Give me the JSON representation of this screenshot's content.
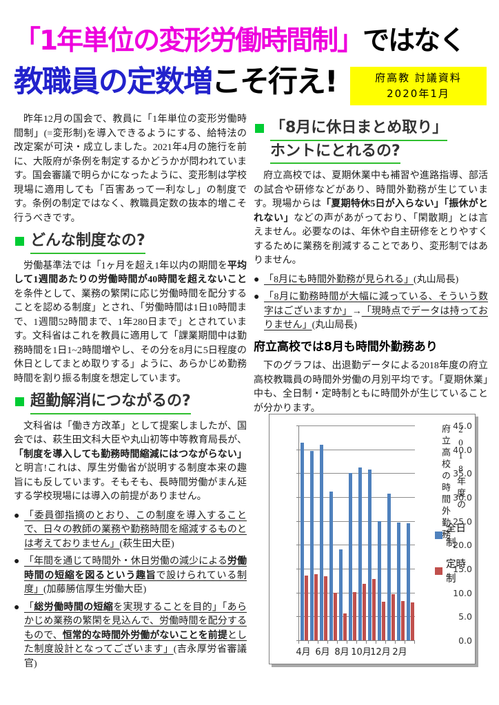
{
  "header": {
    "title_line1": [
      {
        "t": "「1年単位の変形労働時間制」",
        "c": "magenta"
      },
      {
        "t": "ではなく",
        "c": "black"
      }
    ],
    "title_line2": [
      {
        "t": "教職員の定数増",
        "c": "blue"
      },
      {
        "t": "こそ行え!",
        "c": "black"
      }
    ],
    "badge": {
      "line1": "府高教 討議資料",
      "line2": "2020年1月"
    }
  },
  "bullet_marker": "●",
  "colors": {
    "title_magenta": "#ee00dd",
    "title_blue": "#2222cc",
    "badge_yellow": "#ffff00",
    "accent_green": "#00cc33",
    "underline_green": "#2fbf2f",
    "bar_blue": "#4f81bd",
    "bar_red": "#c0504d"
  },
  "columns": {
    "left": [
      {
        "type": "p",
        "segments": [
          {
            "t": "昨年12月の国会で、教員に「1年単位の変形労働時間制」(=変形制)を導入できるようにする、給特法の改定案が可決・成立しました。2021年4月の施行を前に、大阪府が条例を制定するかどうかが問われています。国会審議で明らかになったように、変形制は学校現場に適用しても「百害あって一利なし」の制度です。条例の制定ではなく、教職員定数の抜本的増こそ行うべきです。"
          }
        ]
      },
      {
        "type": "h2",
        "lines": [
          "どんな制度なの?"
        ]
      },
      {
        "type": "p",
        "segments": [
          {
            "t": "労働基準法では「1ヶ月を超え1年以内の期間を"
          },
          {
            "t": "平均して1週間あたりの労働時間が40時間を超えないこと",
            "s": "b"
          },
          {
            "t": "を条件として、業務の繁閑に応じ労働時間を配分することを認める制度」とされ、「労働時間は1日10時間まで、1週間52時間まで、1年280日まで」とされています。文科省はこれを教員に適用して「課業期間中は勤務時間を1日1~2時間増やし、その分を8月に5日程度の休日としてまとめ取りする」ように、あらかじめ勤務時間を割り振る制度を想定しています。"
          }
        ]
      },
      {
        "type": "h2",
        "lines": [
          "超勤解消につながるの?"
        ]
      },
      {
        "type": "p",
        "segments": [
          {
            "t": "文科省は「働き方改革」として提案しましたが、国会では、萩生田文科大臣や丸山初等中等教育局長が、"
          },
          {
            "t": "「制度を導入しても勤務時間縮減にはつながらない」",
            "s": "b"
          },
          {
            "t": "と明言!これは、厚生労働省が説明する制度本来の趣旨にも反しています。そもそも、長時間労働がまん延する学校現場には導入の前提がありません。"
          }
        ]
      },
      {
        "type": "bullet",
        "segments": [
          {
            "t": "「委員御指摘のとおり、この制度を導入することで、日々の教師の業務や勤務時間を縮減するものとは考えておりません」",
            "s": "u"
          },
          {
            "t": "(萩生田大臣)"
          }
        ]
      },
      {
        "type": "bullet",
        "segments": [
          {
            "t": "「年間を通じて時間外・休日労働の減少による",
            "s": "u"
          },
          {
            "t": "労働時間の短縮を図るという趣旨",
            "s": "bu"
          },
          {
            "t": "で設けられている制度」",
            "s": "u"
          },
          {
            "t": "(加藤勝信厚生労働大臣)"
          }
        ]
      },
      {
        "type": "bullet",
        "segments": [
          {
            "t": "「",
            "s": "u"
          },
          {
            "t": "総労働時間の短縮",
            "s": "bu"
          },
          {
            "t": "を実現することを目的」「あらかじめ業務の繁閑を見込んで、労働時間を配分するもので、",
            "s": "u"
          },
          {
            "t": "恒常的な時間外労働がないことを前提",
            "s": "bu"
          },
          {
            "t": "とした制度設計となってございます」",
            "s": "u"
          },
          {
            "t": "(吉永厚労省審議官)"
          }
        ]
      }
    ],
    "right": [
      {
        "type": "h2",
        "lines": [
          "「8月に休日まとめ取り」",
          "ホントにとれるの?"
        ]
      },
      {
        "type": "p",
        "segments": [
          {
            "t": "府立高校では、夏期休業中も補習や進路指導、部活の試合や研修などがあり、時間外勤務が生じています。現場からは"
          },
          {
            "t": "「夏期特休5日が入らない」「振休がとれない」",
            "s": "b"
          },
          {
            "t": "などの声があがっており、「閑散期」とは言えません。必要なのは、年休や自主研修をとりやすくするために業務を削減することであり、変形制ではありません。"
          }
        ]
      },
      {
        "type": "bullet",
        "segments": [
          {
            "t": "「8月にも時間外勤務が見られる」",
            "s": "u"
          },
          {
            "t": "(丸山局長)"
          }
        ]
      },
      {
        "type": "bullet",
        "segments": [
          {
            "t": "「8月に勤務時間が大幅に減っている、そういう数字はございますか」",
            "s": "u"
          },
          {
            "t": "→"
          },
          {
            "t": "「現時点でデータは持っておりません」",
            "s": "u"
          },
          {
            "t": "(丸山局長)"
          }
        ]
      },
      {
        "type": "h3",
        "text": "府立高校では8月も時間外勤務あり"
      },
      {
        "type": "p",
        "segments": [
          {
            "t": "下のグラフは、出退勤データによる2018年度の府立高校教職員の時間外労働の月別平均です。「夏期休業」中も、全日制・定時制ともに時間外が生じていることが分かります。"
          }
        ]
      }
    ]
  },
  "chart_data": {
    "type": "bar",
    "title_vertical": [
      "2018年度の",
      "府立高校の時間外勤務"
    ],
    "categories": [
      "4月",
      "5月",
      "6月",
      "7月",
      "8月",
      "9月",
      "10月",
      "11月",
      "12月",
      "1月",
      "2月",
      "3月"
    ],
    "series": [
      {
        "name": "全日制",
        "color": "#4f81bd",
        "values": [
          41.4,
          39.6,
          41.0,
          31.2,
          19.0,
          35.0,
          36.2,
          35.7,
          25.0,
          30.7,
          24.6,
          24.5
        ]
      },
      {
        "name": "定時制",
        "color": "#c0504d",
        "values": [
          13.5,
          13.8,
          13.4,
          10.0,
          5.6,
          10.1,
          11.9,
          12.9,
          8.1,
          9.6,
          8.2,
          7.9
        ]
      }
    ],
    "ylim": [
      0,
      45
    ],
    "ytick_step": 5,
    "ytick_labels": [
      "45.0",
      "40.0",
      "35.0",
      "30.0",
      "25.0",
      "20.0",
      "15.0",
      "10.0",
      "5.0",
      "0.0"
    ],
    "xtick_labels": [
      "4月",
      "6月",
      "8月",
      "10月",
      "12月",
      "2月"
    ],
    "xtick_label_indices": [
      0,
      2,
      4,
      6,
      8,
      10
    ],
    "grid": true,
    "legend_position": "right"
  }
}
